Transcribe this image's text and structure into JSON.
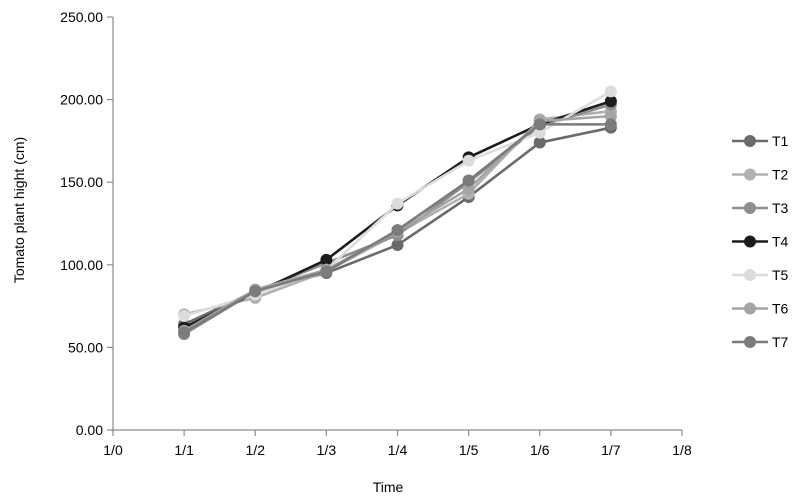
{
  "chart_data": {
    "type": "line",
    "xlabel": "Time",
    "ylabel": "Tomato plant hight (cm)",
    "x_tick_labels": [
      "1/0",
      "1/1",
      "1/2",
      "1/3",
      "1/4",
      "1/5",
      "1/6",
      "1/7",
      "1/8"
    ],
    "y_tick_labels": [
      "0.00",
      "50.00",
      "100.00",
      "150.00",
      "200.00",
      "250.00"
    ],
    "ylim": [
      0,
      250
    ],
    "xlim": [
      0,
      8
    ],
    "x": [
      1,
      2,
      3,
      4,
      5,
      6,
      7
    ],
    "legend_position": "right",
    "grid": false,
    "series": [
      {
        "name": "T1",
        "color": "#6a6a6a",
        "values": [
          64,
          84,
          95,
          112,
          141,
          174,
          183
        ]
      },
      {
        "name": "T2",
        "color": "#b0b0b0",
        "values": [
          70,
          80,
          96,
          119,
          143,
          188,
          193
        ]
      },
      {
        "name": "T3",
        "color": "#8e8e8e",
        "values": [
          58,
          84,
          101,
          118,
          150,
          184,
          197
        ]
      },
      {
        "name": "T4",
        "color": "#1c1c1c",
        "values": [
          62,
          83,
          103,
          136,
          165,
          185,
          199
        ]
      },
      {
        "name": "T5",
        "color": "#dcdcdc",
        "values": [
          69,
          82,
          97,
          137,
          163,
          180,
          205
        ]
      },
      {
        "name": "T6",
        "color": "#a4a4a4",
        "values": [
          60,
          85,
          97,
          120,
          146,
          187,
          190
        ]
      },
      {
        "name": "T7",
        "color": "#7b7b7b",
        "values": [
          59,
          84,
          96,
          121,
          151,
          185,
          185
        ]
      }
    ]
  }
}
